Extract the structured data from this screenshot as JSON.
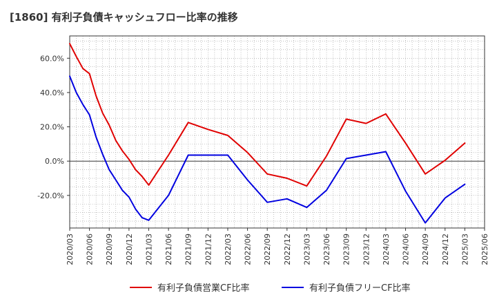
{
  "title": "[1860]  有利子負債キャッシュフロー比率の推移",
  "chart_data": {
    "type": "line",
    "title": "[1860]  有利子負債キャッシュフロー比率の推移",
    "xlabel": "",
    "ylabel": "",
    "x_ticks": [
      "2020/03",
      "2020/06",
      "2020/09",
      "2020/12",
      "2021/03",
      "2021/06",
      "2021/09",
      "2021/12",
      "2022/03",
      "2022/06",
      "2022/09",
      "2022/12",
      "2023/03",
      "2023/06",
      "2023/09",
      "2023/12",
      "2024/03",
      "2024/06",
      "2024/09",
      "2024/12",
      "2025/03",
      "2025/06"
    ],
    "y_ticks": [
      60,
      40,
      20,
      0,
      -20
    ],
    "y_tick_labels": [
      "60.0%",
      "40.0%",
      "20.0%",
      "0.0%",
      "-20.0%"
    ],
    "ylim": [
      -39,
      73
    ],
    "grid": true,
    "legend_position": "bottom",
    "series": [
      {
        "name": "有利子負債営業CF比率",
        "color": "#e00000",
        "x": [
          "2020/03",
          "2020/04",
          "2020/05",
          "2020/06",
          "2020/07",
          "2020/08",
          "2020/09",
          "2020/10",
          "2020/11",
          "2020/12",
          "2021/01",
          "2021/02",
          "2021/03",
          "2021/06",
          "2021/09",
          "2021/12",
          "2022/03",
          "2022/06",
          "2022/09",
          "2022/12",
          "2023/03",
          "2023/06",
          "2023/09",
          "2023/12",
          "2024/03",
          "2024/06",
          "2024/09",
          "2024/12",
          "2025/03"
        ],
        "values": [
          68.5,
          61,
          54,
          51,
          38,
          28,
          21,
          12,
          6,
          1,
          -5,
          -9,
          -14,
          3.5,
          22.5,
          18.5,
          15,
          5,
          -7.5,
          -10,
          -14.5,
          3,
          24.5,
          22,
          27.5,
          10.5,
          -7.5,
          0.5,
          10.5
        ]
      },
      {
        "name": "有利子負債フリーCF比率",
        "color": "#0000e0",
        "x": [
          "2020/03",
          "2020/04",
          "2020/05",
          "2020/06",
          "2020/07",
          "2020/08",
          "2020/09",
          "2020/10",
          "2020/11",
          "2020/12",
          "2021/01",
          "2021/02",
          "2021/03",
          "2021/06",
          "2021/09",
          "2021/12",
          "2022/03",
          "2022/06",
          "2022/09",
          "2022/12",
          "2023/03",
          "2023/06",
          "2023/09",
          "2023/12",
          "2024/03",
          "2024/06",
          "2024/09",
          "2024/12",
          "2025/03"
        ],
        "values": [
          49.5,
          40,
          33,
          27,
          14,
          4,
          -5,
          -11,
          -17,
          -21,
          -28,
          -33,
          -34.5,
          -20,
          3.5,
          3.5,
          3.5,
          -11,
          -24,
          -22,
          -27,
          -17,
          1.5,
          3.5,
          5.5,
          -17.5,
          -36,
          -21.5,
          -13.5
        ]
      }
    ]
  }
}
